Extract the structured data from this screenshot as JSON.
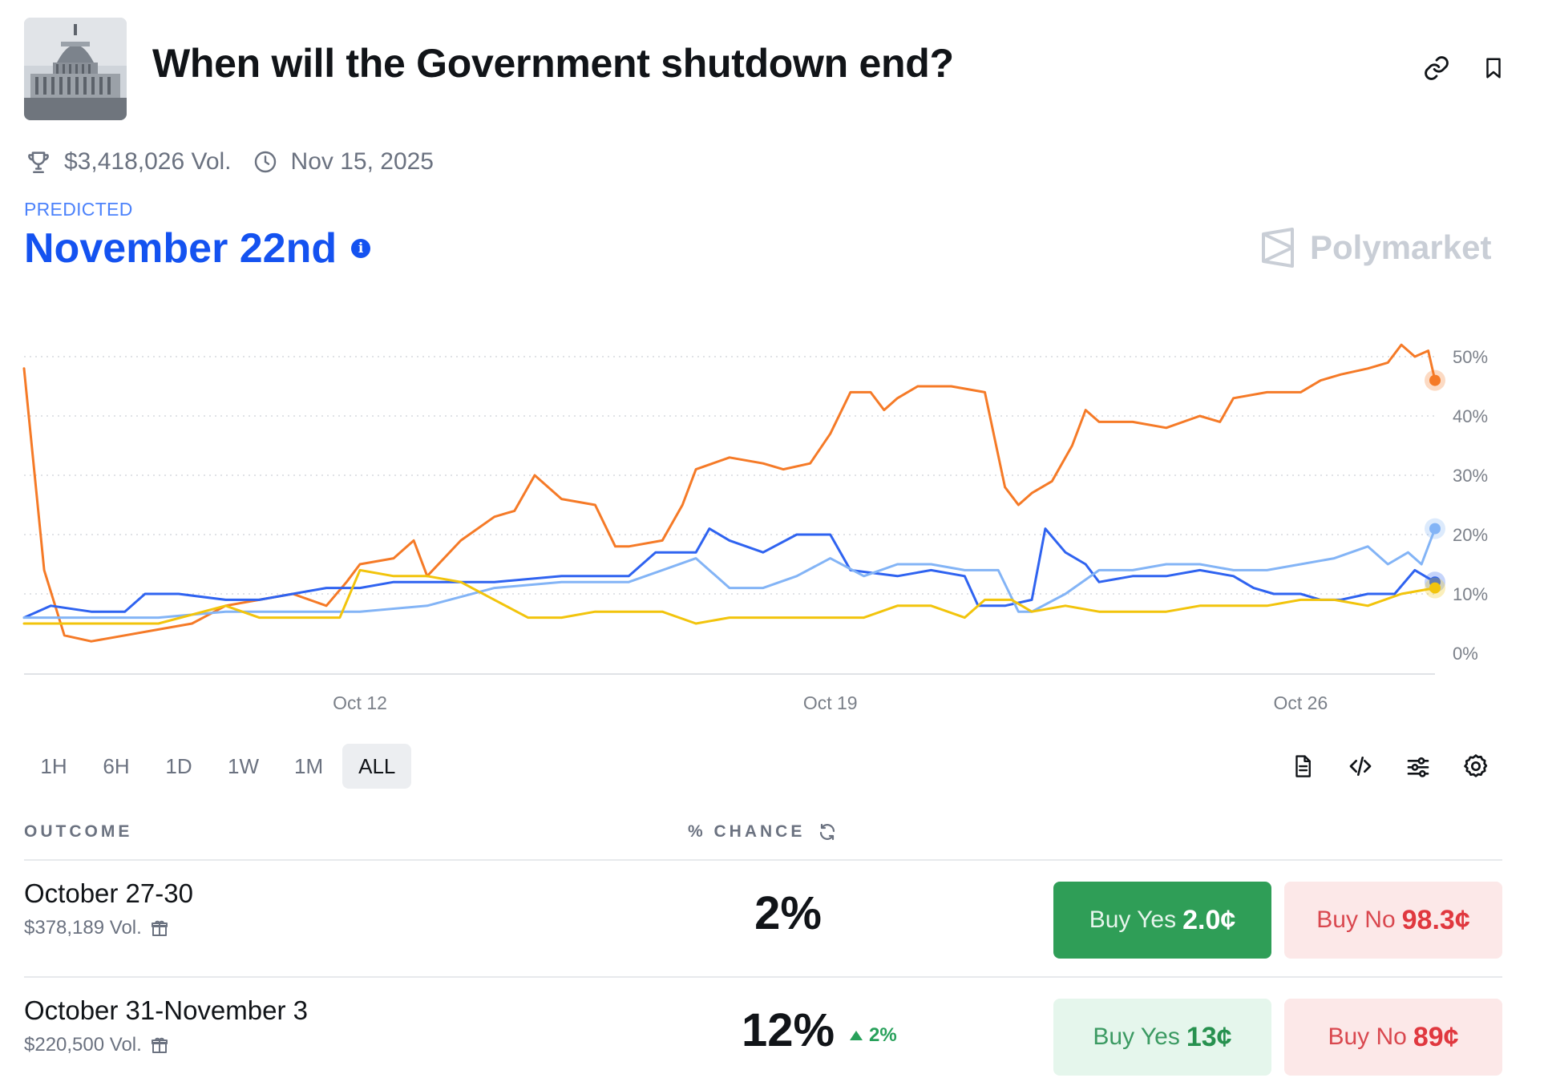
{
  "market": {
    "title": "When will the Government shutdown end?",
    "volume": "$3,418,026 Vol.",
    "end_date": "Nov 15, 2025",
    "predicted_label": "PREDICTED",
    "predicted_value": "November 22nd",
    "brand": "Polymarket"
  },
  "toolbar": {
    "ranges": [
      "1H",
      "6H",
      "1D",
      "1W",
      "1M",
      "ALL"
    ],
    "active_range": "ALL"
  },
  "table": {
    "outcome_header": "OUTCOME",
    "chance_header": "% CHANCE",
    "rows": [
      {
        "name": "October 27-30",
        "volume": "$378,189 Vol.",
        "chance": "2%",
        "delta": "",
        "yes_label": "Buy Yes",
        "yes_price": "2.0¢",
        "no_label": "Buy No",
        "no_price": "98.3¢"
      },
      {
        "name": "October 31-November 3",
        "volume": "$220,500 Vol.",
        "chance": "12%",
        "delta": "2%",
        "yes_label": "Buy Yes",
        "yes_price": "13¢",
        "no_label": "Buy No",
        "no_price": "89¢"
      }
    ]
  },
  "colors": {
    "accent_blue": "#1452f0",
    "series_orange": "#f57a27",
    "series_blue": "#2f63f0",
    "series_lightblue": "#83b4f6",
    "series_yellow": "#f2c40c",
    "yes_green": "#2f9e57",
    "no_red": "#e0383f"
  },
  "chart_data": {
    "type": "line",
    "x_labels": [
      "Oct 12",
      "Oct 19",
      "Oct 26"
    ],
    "y_ticks": [
      "0%",
      "10%",
      "20%",
      "30%",
      "40%",
      "50%"
    ],
    "ylim": [
      0,
      50
    ],
    "xlim": [
      "Oct 7",
      "Oct 28"
    ],
    "grid": true,
    "series": [
      {
        "color": "#f57a27",
        "points": [
          [
            "Oct 7",
            48
          ],
          [
            "Oct 7.3",
            14
          ],
          [
            "Oct 7.6",
            3
          ],
          [
            "Oct 8",
            2
          ],
          [
            "Oct 8.5",
            3
          ],
          [
            "Oct 9",
            4
          ],
          [
            "Oct 9.5",
            5
          ],
          [
            "Oct 10",
            8
          ],
          [
            "Oct 10.5",
            9
          ],
          [
            "Oct 11",
            10
          ],
          [
            "Oct 11.5",
            8
          ],
          [
            "Oct 11.8",
            12
          ],
          [
            "Oct 12",
            15
          ],
          [
            "Oct 12.5",
            16
          ],
          [
            "Oct 12.8",
            19
          ],
          [
            "Oct 13",
            13
          ],
          [
            "Oct 13.5",
            19
          ],
          [
            "Oct 14",
            23
          ],
          [
            "Oct 14.3",
            24
          ],
          [
            "Oct 14.6",
            30
          ],
          [
            "Oct 15",
            26
          ],
          [
            "Oct 15.5",
            25
          ],
          [
            "Oct 15.8",
            18
          ],
          [
            "Oct 16",
            18
          ],
          [
            "Oct 16.5",
            19
          ],
          [
            "Oct 16.8",
            25
          ],
          [
            "Oct 17",
            31
          ],
          [
            "Oct 17.5",
            33
          ],
          [
            "Oct 18",
            32
          ],
          [
            "Oct 18.3",
            31
          ],
          [
            "Oct 18.7",
            32
          ],
          [
            "Oct 19",
            37
          ],
          [
            "Oct 19.3",
            44
          ],
          [
            "Oct 19.6",
            44
          ],
          [
            "Oct 19.8",
            41
          ],
          [
            "Oct 20",
            43
          ],
          [
            "Oct 20.3",
            45
          ],
          [
            "Oct 20.8",
            45
          ],
          [
            "Oct 21.3",
            44
          ],
          [
            "Oct 21.6",
            28
          ],
          [
            "Oct 21.8",
            25
          ],
          [
            "Oct 22",
            27
          ],
          [
            "Oct 22.3",
            29
          ],
          [
            "Oct 22.6",
            35
          ],
          [
            "Oct 22.8",
            41
          ],
          [
            "Oct 23",
            39
          ],
          [
            "Oct 23.5",
            39
          ],
          [
            "Oct 24",
            38
          ],
          [
            "Oct 24.5",
            40
          ],
          [
            "Oct 24.8",
            39
          ],
          [
            "Oct 25",
            43
          ],
          [
            "Oct 25.5",
            44
          ],
          [
            "Oct 26",
            44
          ],
          [
            "Oct 26.3",
            46
          ],
          [
            "Oct 26.6",
            47
          ],
          [
            "Oct 27",
            48
          ],
          [
            "Oct 27.3",
            49
          ],
          [
            "Oct 27.5",
            52
          ],
          [
            "Oct 27.7",
            50
          ],
          [
            "Oct 27.9",
            51
          ],
          [
            "Oct 28",
            46
          ]
        ]
      },
      {
        "color": "#2f63f0",
        "points": [
          [
            "Oct 7",
            6
          ],
          [
            "Oct 7.4",
            8
          ],
          [
            "Oct 8",
            7
          ],
          [
            "Oct 8.5",
            7
          ],
          [
            "Oct 8.8",
            10
          ],
          [
            "Oct 9.3",
            10
          ],
          [
            "Oct 10",
            9
          ],
          [
            "Oct 10.5",
            9
          ],
          [
            "Oct 11",
            10
          ],
          [
            "Oct 11.5",
            11
          ],
          [
            "Oct 12",
            11
          ],
          [
            "Oct 12.5",
            12
          ],
          [
            "Oct 13",
            12
          ],
          [
            "Oct 14",
            12
          ],
          [
            "Oct 15",
            13
          ],
          [
            "Oct 16",
            13
          ],
          [
            "Oct 16.4",
            17
          ],
          [
            "Oct 17",
            17
          ],
          [
            "Oct 17.2",
            21
          ],
          [
            "Oct 17.5",
            19
          ],
          [
            "Oct 18",
            17
          ],
          [
            "Oct 18.5",
            20
          ],
          [
            "Oct 19",
            20
          ],
          [
            "Oct 19.3",
            14
          ],
          [
            "Oct 20",
            13
          ],
          [
            "Oct 20.5",
            14
          ],
          [
            "Oct 21",
            13
          ],
          [
            "Oct 21.2",
            8
          ],
          [
            "Oct 21.6",
            8
          ],
          [
            "Oct 22",
            9
          ],
          [
            "Oct 22.2",
            21
          ],
          [
            "Oct 22.5",
            17
          ],
          [
            "Oct 22.8",
            15
          ],
          [
            "Oct 23",
            12
          ],
          [
            "Oct 23.5",
            13
          ],
          [
            "Oct 24",
            13
          ],
          [
            "Oct 24.5",
            14
          ],
          [
            "Oct 25",
            13
          ],
          [
            "Oct 25.3",
            11
          ],
          [
            "Oct 25.6",
            10
          ],
          [
            "Oct 26",
            10
          ],
          [
            "Oct 26.3",
            9
          ],
          [
            "Oct 26.6",
            9
          ],
          [
            "Oct 27",
            10
          ],
          [
            "Oct 27.4",
            10
          ],
          [
            "Oct 27.7",
            14
          ],
          [
            "Oct 28",
            12
          ]
        ]
      },
      {
        "color": "#83b4f6",
        "points": [
          [
            "Oct 7",
            6
          ],
          [
            "Oct 8",
            6
          ],
          [
            "Oct 9",
            6
          ],
          [
            "Oct 10",
            7
          ],
          [
            "Oct 11",
            7
          ],
          [
            "Oct 12",
            7
          ],
          [
            "Oct 13",
            8
          ],
          [
            "Oct 14",
            11
          ],
          [
            "Oct 15",
            12
          ],
          [
            "Oct 16",
            12
          ],
          [
            "Oct 16.5",
            14
          ],
          [
            "Oct 17",
            16
          ],
          [
            "Oct 17.5",
            11
          ],
          [
            "Oct 18",
            11
          ],
          [
            "Oct 18.5",
            13
          ],
          [
            "Oct 19",
            16
          ],
          [
            "Oct 19.5",
            13
          ],
          [
            "Oct 20",
            15
          ],
          [
            "Oct 20.5",
            15
          ],
          [
            "Oct 21",
            14
          ],
          [
            "Oct 21.5",
            14
          ],
          [
            "Oct 21.8",
            7
          ],
          [
            "Oct 22",
            7
          ],
          [
            "Oct 22.5",
            10
          ],
          [
            "Oct 23",
            14
          ],
          [
            "Oct 23.5",
            14
          ],
          [
            "Oct 24",
            15
          ],
          [
            "Oct 24.5",
            15
          ],
          [
            "Oct 25",
            14
          ],
          [
            "Oct 25.5",
            14
          ],
          [
            "Oct 26",
            15
          ],
          [
            "Oct 26.5",
            16
          ],
          [
            "Oct 27",
            18
          ],
          [
            "Oct 27.3",
            15
          ],
          [
            "Oct 27.6",
            17
          ],
          [
            "Oct 27.8",
            15
          ],
          [
            "Oct 28",
            21
          ]
        ]
      },
      {
        "color": "#f2c40c",
        "points": [
          [
            "Oct 7",
            5
          ],
          [
            "Oct 8",
            5
          ],
          [
            "Oct 9",
            5
          ],
          [
            "Oct 10",
            8
          ],
          [
            "Oct 10.5",
            6
          ],
          [
            "Oct 11",
            6
          ],
          [
            "Oct 11.7",
            6
          ],
          [
            "Oct 12",
            14
          ],
          [
            "Oct 12.5",
            13
          ],
          [
            "Oct 13",
            13
          ],
          [
            "Oct 13.5",
            12
          ],
          [
            "Oct 14",
            9
          ],
          [
            "Oct 14.5",
            6
          ],
          [
            "Oct 15",
            6
          ],
          [
            "Oct 15.5",
            7
          ],
          [
            "Oct 16",
            7
          ],
          [
            "Oct 16.5",
            7
          ],
          [
            "Oct 17",
            5
          ],
          [
            "Oct 17.5",
            6
          ],
          [
            "Oct 18",
            6
          ],
          [
            "Oct 18.5",
            6
          ],
          [
            "Oct 19",
            6
          ],
          [
            "Oct 19.5",
            6
          ],
          [
            "Oct 20",
            8
          ],
          [
            "Oct 20.5",
            8
          ],
          [
            "Oct 21",
            6
          ],
          [
            "Oct 21.3",
            9
          ],
          [
            "Oct 21.7",
            9
          ],
          [
            "Oct 22",
            7
          ],
          [
            "Oct 22.5",
            8
          ],
          [
            "Oct 23",
            7
          ],
          [
            "Oct 24",
            7
          ],
          [
            "Oct 24.5",
            8
          ],
          [
            "Oct 25",
            8
          ],
          [
            "Oct 25.5",
            8
          ],
          [
            "Oct 26",
            9
          ],
          [
            "Oct 26.5",
            9
          ],
          [
            "Oct 27",
            8
          ],
          [
            "Oct 27.5",
            10
          ],
          [
            "Oct 28",
            11
          ]
        ]
      }
    ]
  }
}
